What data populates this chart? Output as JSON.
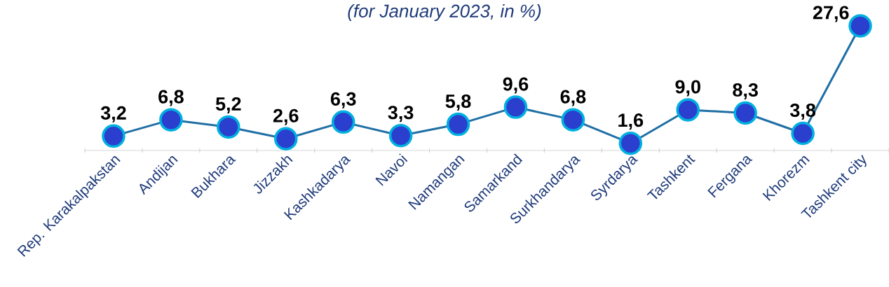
{
  "chart_data": {
    "type": "line",
    "title": "(for January 2023, in %)",
    "categories": [
      "Rep. Karakalpakstan",
      "Andijan",
      "Bukhara",
      "Jizzakh",
      "Kashkadarya",
      "Navoi",
      "Namangan",
      "Samarkand",
      "Surkhandarya",
      "Syrdarya",
      "Tashkent",
      "Fergana",
      "Khorezm",
      "Tashkent city"
    ],
    "series": [
      {
        "color": "#1f6fa5",
        "values": [
          3.2,
          6.8,
          5.2,
          2.6,
          6.3,
          3.3,
          5.8,
          9.6,
          6.8,
          1.6,
          9.0,
          8.3,
          3.8,
          27.6
        ],
        "value_labels": [
          "3,2",
          "6,8",
          "5,2",
          "2,6",
          "6,3",
          "3,3",
          "5,8",
          "9,6",
          "6,8",
          "1,6",
          "9,0",
          "8,3",
          "3,8",
          "27,6"
        ]
      }
    ],
    "marker": "circle",
    "line_style": "solid"
  }
}
